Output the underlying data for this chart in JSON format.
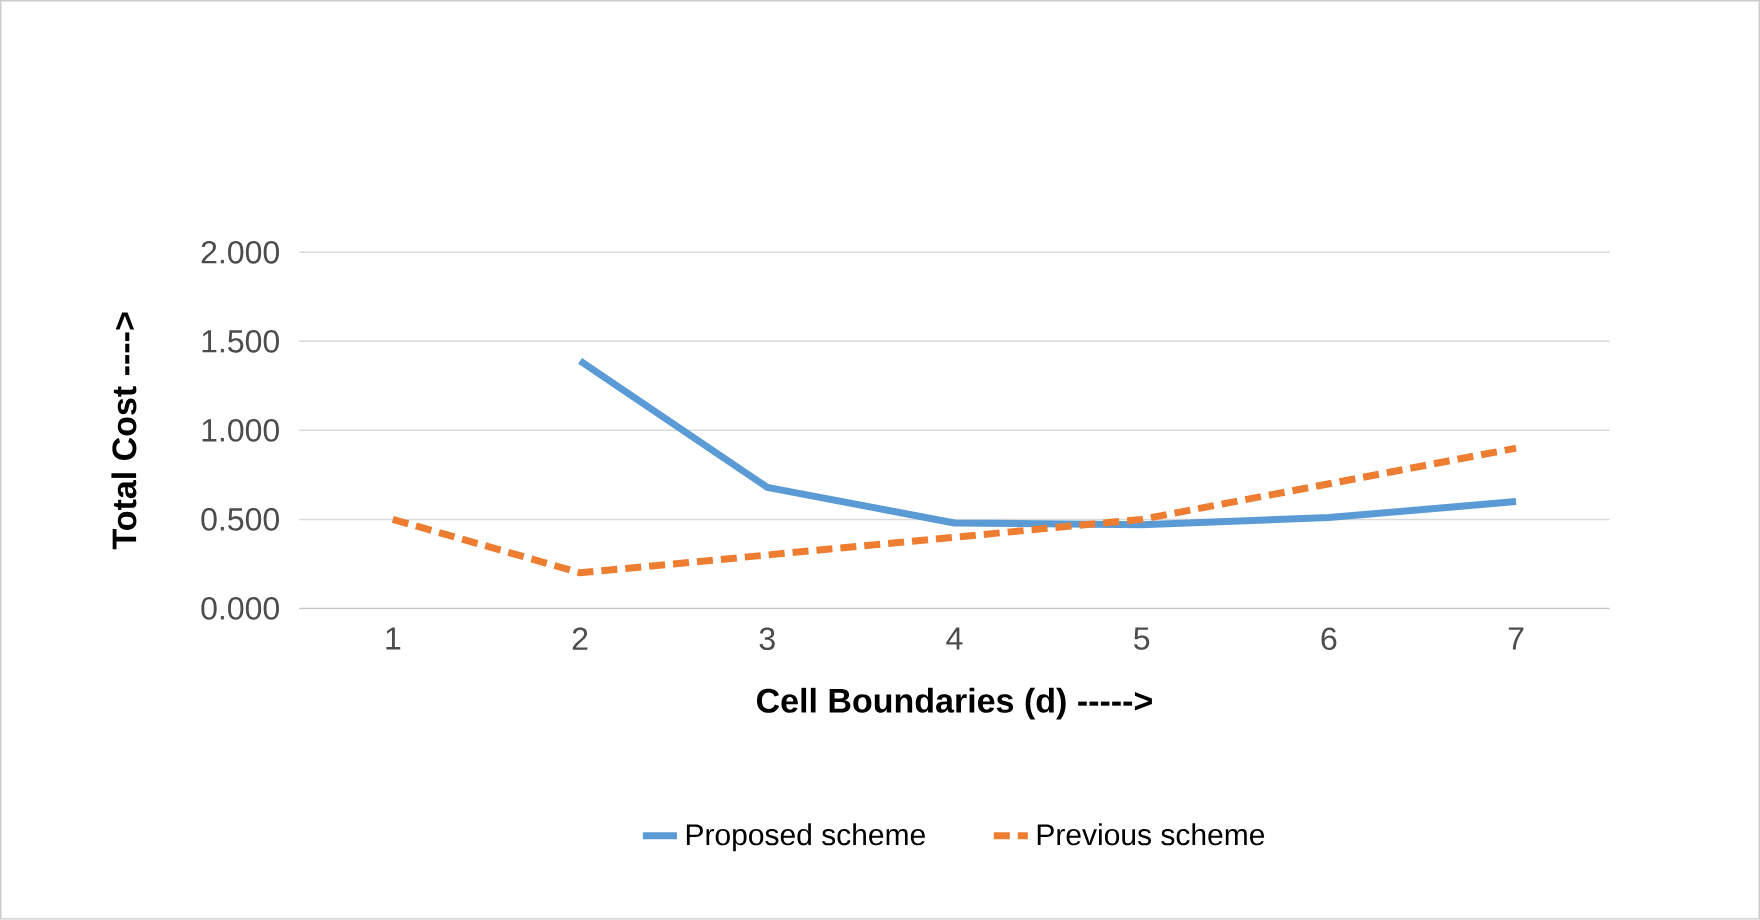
{
  "chart_data": {
    "type": "line",
    "xlabel": "Cell Boundaries (d)  ----->",
    "ylabel": "Total Cost  ---->",
    "categories": [
      "1",
      "2",
      "3",
      "4",
      "5",
      "6",
      "7"
    ],
    "series": [
      {
        "name": "Proposed scheme",
        "color": "#5b9bd5",
        "line_style": "solid",
        "values": [
          null,
          1.39,
          0.68,
          0.48,
          0.47,
          0.51,
          0.6
        ]
      },
      {
        "name": "Previous scheme",
        "color": "#ed7d31",
        "line_style": "dashed",
        "values": [
          0.5,
          0.2,
          0.3,
          0.4,
          0.5,
          0.7,
          0.9
        ]
      }
    ],
    "ylim": [
      0,
      2
    ],
    "yticks": [
      {
        "value": 0,
        "label": "0.000"
      },
      {
        "value": 0.5,
        "label": "0.500"
      },
      {
        "value": 1,
        "label": "1.000"
      },
      {
        "value": 1.5,
        "label": "1.500"
      },
      {
        "value": 2,
        "label": "2.000"
      }
    ],
    "grid": "y",
    "legend": "bottom"
  }
}
